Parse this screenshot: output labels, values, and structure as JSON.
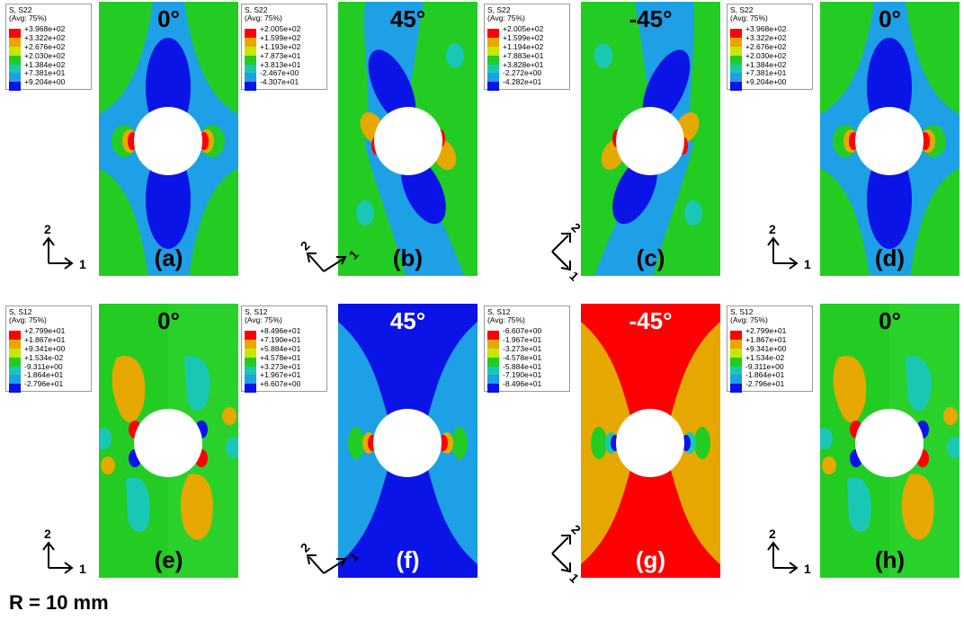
{
  "colors": {
    "red": "#ff0000",
    "orange": "#e6a800",
    "yellow": "#e6e600",
    "green": "#22cc22",
    "cyan": "#2ab0e6",
    "lightblue": "#1ea0e6",
    "blue": "#0a14e6"
  },
  "legend_swatch_colors": [
    "#ff0000",
    "#e6a800",
    "#c8e600",
    "#22cc22",
    "#19c8b4",
    "#1ea0e6",
    "#0a14e6"
  ],
  "panels": [
    {
      "angle": "0°",
      "tag": "(a)",
      "legend": {
        "t1": "S, S22",
        "t2": "(Avg: 75%)",
        "values": [
          "+3.968e+02",
          "+3.322e+02",
          "+2.676e+02",
          "+2.030e+02",
          "+1.384e+02",
          "+7.381e+01",
          "+9.204e+00"
        ]
      }
    },
    {
      "angle": "45°",
      "tag": "(b)",
      "legend": {
        "t1": "S, S22",
        "t2": "(Avg: 75%)",
        "values": [
          "+2.005e+02",
          "+1.599e+02",
          "+1.193e+02",
          "+7.873e+01",
          "+3.813e+01",
          "-2.467e+00",
          "-4.307e+01"
        ]
      }
    },
    {
      "angle": "-45°",
      "tag": "(c)",
      "legend": {
        "t1": "S, S22",
        "t2": "(Avg: 75%)",
        "values": [
          "+2.005e+02",
          "+1.599e+02",
          "+1.194e+02",
          "+7.883e+01",
          "+3.828e+01",
          "-2.272e+00",
          "-4.282e+01"
        ]
      }
    },
    {
      "angle": "0°",
      "tag": "(d)",
      "legend": {
        "t1": "S, S22",
        "t2": "(Avg: 75%)",
        "values": [
          "+3.968e+02",
          "+3.322e+02",
          "+2.676e+02",
          "+2.030e+02",
          "+1.384e+02",
          "+7.381e+01",
          "+9.204e+00"
        ]
      }
    },
    {
      "angle": "0°",
      "tag": "(e)",
      "legend": {
        "t1": "S, S12",
        "t2": "(Avg: 75%)",
        "values": [
          "+2.799e+01",
          "+1.867e+01",
          "+9.341e+00",
          "+1.534e-02",
          "-9.311e+00",
          "-1.864e+01",
          "-2.796e+01"
        ]
      }
    },
    {
      "angle": "45°",
      "tag": "(f)",
      "legend": {
        "t1": "S, S12",
        "t2": "(Avg: 75%)",
        "values": [
          "+8.496e+01",
          "+7.190e+01",
          "+5.884e+01",
          "+4.578e+01",
          "+3.273e+01",
          "+1.967e+01",
          "+6.607e+00"
        ]
      }
    },
    {
      "angle": "-45°",
      "tag": "(g)",
      "legend": {
        "t1": "S, S12",
        "t2": "(Avg: 75%)",
        "values": [
          "-6.607e+00",
          "-1.967e+01",
          "-3.273e+01",
          "-4.578e+01",
          "-5.884e+01",
          "-7.190e+01",
          "-8.496e+01"
        ]
      }
    },
    {
      "angle": "0°",
      "tag": "(h)",
      "legend": {
        "t1": "S, S12",
        "t2": "(Avg: 75%)",
        "values": [
          "+2.799e+01",
          "+1.867e+01",
          "+9.341e+00",
          "+1.534e-02",
          "-9.311e+00",
          "-1.864e+01",
          "-2.796e+01"
        ]
      }
    }
  ],
  "axes": {
    "one": "1",
    "two": "2"
  },
  "footer": "R = 10 mm"
}
